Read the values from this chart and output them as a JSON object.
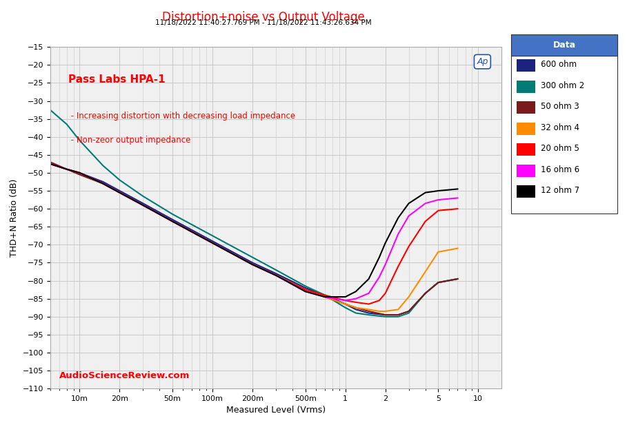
{
  "title": "Distortion+noise vs Output Voltage",
  "subtitle": "11/18/2022 11:40:27.769 PM - 11/18/2022 11:43:26.634 PM",
  "xlabel": "Measured Level (Vrms)",
  "ylabel": "THD+N Ratio (dB)",
  "watermark": "AudioScienceReview.com",
  "annotation1": "Pass Labs HPA-1",
  "annotation2": " - Increasing distortion with decreasing load impedance",
  "annotation3": " - Non-zeor output impedance",
  "legend_title": "Data",
  "series": [
    {
      "label": "600 ohm",
      "color": "#1a237e",
      "lw": 1.5,
      "points": [
        [
          0.006,
          -47.5
        ],
        [
          0.008,
          -49.0
        ],
        [
          0.01,
          -50.0
        ],
        [
          0.015,
          -52.5
        ],
        [
          0.02,
          -55.0
        ],
        [
          0.03,
          -58.5
        ],
        [
          0.05,
          -63.0
        ],
        [
          0.1,
          -69.0
        ],
        [
          0.2,
          -75.0
        ],
        [
          0.3,
          -78.0
        ],
        [
          0.5,
          -82.0
        ],
        [
          0.7,
          -84.0
        ],
        [
          1.0,
          -86.5
        ],
        [
          1.2,
          -88.0
        ],
        [
          1.5,
          -89.0
        ],
        [
          2.0,
          -89.5
        ],
        [
          2.5,
          -89.5
        ],
        [
          3.0,
          -88.5
        ],
        [
          4.0,
          -83.5
        ],
        [
          5.0,
          -80.5
        ],
        [
          7.0,
          -79.5
        ]
      ]
    },
    {
      "label": "300 ohm 2",
      "color": "#007b75",
      "lw": 1.5,
      "points": [
        [
          0.006,
          -32.5
        ],
        [
          0.008,
          -36.5
        ],
        [
          0.01,
          -41.0
        ],
        [
          0.015,
          -48.0
        ],
        [
          0.02,
          -52.0
        ],
        [
          0.03,
          -56.5
        ],
        [
          0.05,
          -61.5
        ],
        [
          0.1,
          -67.5
        ],
        [
          0.2,
          -73.5
        ],
        [
          0.3,
          -77.0
        ],
        [
          0.5,
          -81.5
        ],
        [
          0.7,
          -84.0
        ],
        [
          1.0,
          -87.5
        ],
        [
          1.2,
          -89.0
        ],
        [
          1.5,
          -89.5
        ],
        [
          2.0,
          -90.0
        ],
        [
          2.5,
          -90.0
        ],
        [
          3.0,
          -89.0
        ],
        [
          4.0,
          -83.5
        ],
        [
          5.0,
          -80.5
        ],
        [
          7.0,
          -79.5
        ]
      ]
    },
    {
      "label": "50 ohm 3",
      "color": "#7b1a1a",
      "lw": 1.5,
      "points": [
        [
          0.006,
          -47.0
        ],
        [
          0.008,
          -49.0
        ],
        [
          0.01,
          -50.5
        ],
        [
          0.015,
          -53.0
        ],
        [
          0.02,
          -55.5
        ],
        [
          0.03,
          -59.0
        ],
        [
          0.05,
          -63.5
        ],
        [
          0.1,
          -69.5
        ],
        [
          0.2,
          -75.5
        ],
        [
          0.3,
          -78.5
        ],
        [
          0.5,
          -82.5
        ],
        [
          0.7,
          -84.5
        ],
        [
          1.0,
          -86.5
        ],
        [
          1.2,
          -87.5
        ],
        [
          1.5,
          -88.5
        ],
        [
          2.0,
          -89.5
        ],
        [
          2.5,
          -89.5
        ],
        [
          3.0,
          -88.5
        ],
        [
          4.0,
          -83.5
        ],
        [
          5.0,
          -80.5
        ],
        [
          7.0,
          -79.5
        ]
      ]
    },
    {
      "label": "32 ohm 4",
      "color": "#ff8c00",
      "lw": 1.5,
      "points": [
        [
          0.006,
          -47.5
        ],
        [
          0.008,
          -49.0
        ],
        [
          0.01,
          -50.0
        ],
        [
          0.015,
          -53.0
        ],
        [
          0.02,
          -55.5
        ],
        [
          0.03,
          -59.0
        ],
        [
          0.05,
          -63.5
        ],
        [
          0.1,
          -69.5
        ],
        [
          0.2,
          -75.5
        ],
        [
          0.3,
          -78.5
        ],
        [
          0.5,
          -82.5
        ],
        [
          0.7,
          -84.5
        ],
        [
          1.0,
          -86.5
        ],
        [
          1.2,
          -87.5
        ],
        [
          1.5,
          -88.0
        ],
        [
          1.8,
          -88.5
        ],
        [
          2.0,
          -88.5
        ],
        [
          2.5,
          -88.0
        ],
        [
          3.0,
          -84.5
        ],
        [
          4.0,
          -77.5
        ],
        [
          5.0,
          -72.0
        ],
        [
          7.0,
          -71.0
        ]
      ]
    },
    {
      "label": "20 ohm 5",
      "color": "#ff0000",
      "lw": 1.5,
      "points": [
        [
          0.006,
          -47.5
        ],
        [
          0.008,
          -49.0
        ],
        [
          0.01,
          -50.0
        ],
        [
          0.015,
          -53.0
        ],
        [
          0.02,
          -55.5
        ],
        [
          0.03,
          -59.0
        ],
        [
          0.05,
          -63.5
        ],
        [
          0.1,
          -69.5
        ],
        [
          0.2,
          -75.5
        ],
        [
          0.3,
          -78.5
        ],
        [
          0.5,
          -82.5
        ],
        [
          0.7,
          -84.0
        ],
        [
          1.0,
          -85.5
        ],
        [
          1.2,
          -86.0
        ],
        [
          1.5,
          -86.5
        ],
        [
          1.8,
          -85.5
        ],
        [
          2.0,
          -83.5
        ],
        [
          2.5,
          -76.0
        ],
        [
          3.0,
          -70.5
        ],
        [
          4.0,
          -63.5
        ],
        [
          5.0,
          -60.5
        ],
        [
          7.0,
          -60.0
        ]
      ]
    },
    {
      "label": "16 ohm 6",
      "color": "#ff00ff",
      "lw": 1.5,
      "points": [
        [
          0.006,
          -47.5
        ],
        [
          0.008,
          -49.0
        ],
        [
          0.01,
          -50.0
        ],
        [
          0.015,
          -53.0
        ],
        [
          0.02,
          -55.5
        ],
        [
          0.03,
          -59.0
        ],
        [
          0.05,
          -63.5
        ],
        [
          0.1,
          -69.5
        ],
        [
          0.2,
          -75.5
        ],
        [
          0.3,
          -78.5
        ],
        [
          0.5,
          -83.0
        ],
        [
          0.7,
          -84.5
        ],
        [
          1.0,
          -85.5
        ],
        [
          1.2,
          -85.0
        ],
        [
          1.5,
          -83.5
        ],
        [
          1.8,
          -79.0
        ],
        [
          2.0,
          -75.5
        ],
        [
          2.5,
          -67.0
        ],
        [
          3.0,
          -62.0
        ],
        [
          4.0,
          -58.5
        ],
        [
          5.0,
          -57.5
        ],
        [
          7.0,
          -57.0
        ]
      ]
    },
    {
      "label": "12 ohm 7",
      "color": "#000000",
      "lw": 1.5,
      "points": [
        [
          0.006,
          -47.5
        ],
        [
          0.008,
          -49.0
        ],
        [
          0.01,
          -50.0
        ],
        [
          0.015,
          -53.0
        ],
        [
          0.02,
          -55.5
        ],
        [
          0.03,
          -59.0
        ],
        [
          0.05,
          -63.5
        ],
        [
          0.1,
          -69.5
        ],
        [
          0.2,
          -75.5
        ],
        [
          0.3,
          -78.5
        ],
        [
          0.5,
          -83.0
        ],
        [
          0.7,
          -84.5
        ],
        [
          1.0,
          -84.5
        ],
        [
          1.2,
          -83.0
        ],
        [
          1.5,
          -79.5
        ],
        [
          1.8,
          -73.5
        ],
        [
          2.0,
          -69.5
        ],
        [
          2.5,
          -62.5
        ],
        [
          3.0,
          -58.5
        ],
        [
          4.0,
          -55.5
        ],
        [
          5.0,
          -55.0
        ],
        [
          7.0,
          -54.5
        ]
      ]
    }
  ],
  "xlim": [
    0.006,
    15
  ],
  "ylim": [
    -110,
    -15
  ],
  "yticks": [
    -15,
    -20,
    -25,
    -30,
    -35,
    -40,
    -45,
    -50,
    -55,
    -60,
    -65,
    -70,
    -75,
    -80,
    -85,
    -90,
    -95,
    -100,
    -105,
    -110
  ],
  "xtick_labels": [
    "10m",
    "20m",
    "50m",
    "100m",
    "200m",
    "500m",
    "1",
    "2",
    "5",
    "10"
  ],
  "xtick_values": [
    0.01,
    0.02,
    0.05,
    0.1,
    0.2,
    0.5,
    1,
    2,
    5,
    10
  ],
  "grid_color": "#c8c8c8",
  "bg_color": "#f0f0f0",
  "title_color": "#ff0000",
  "subtitle_color": "#000000",
  "watermark_color": "#ff0000",
  "annotation_color": "#ff0000",
  "legend_header_bg": "#4472c4",
  "legend_header_color": "#ffffff"
}
